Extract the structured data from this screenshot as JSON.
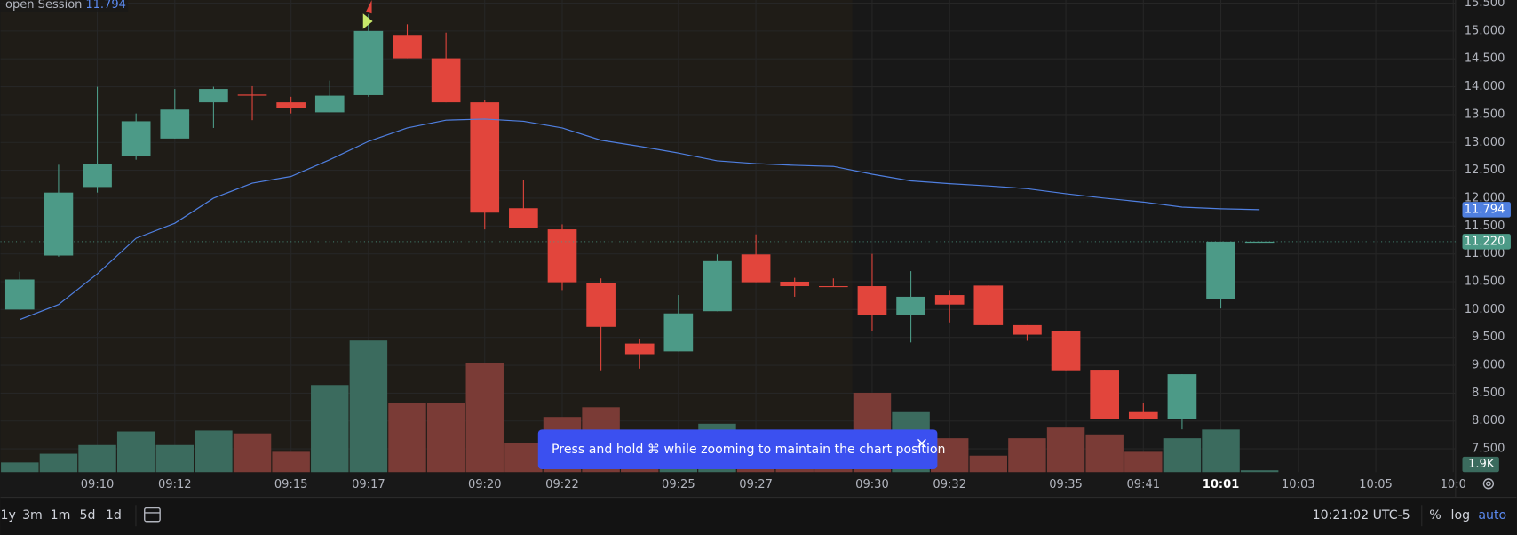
{
  "chart_data": {
    "type": "candlestick",
    "legend": {
      "name": "open Session",
      "value": 11.794,
      "value_label": "11.794"
    },
    "categories": [
      null,
      null,
      "09:10",
      null,
      "09:12",
      null,
      null,
      "09:15",
      null,
      "09:17",
      null,
      null,
      "09:20",
      null,
      "09:22",
      null,
      null,
      "09:25",
      null,
      "09:27",
      null,
      null,
      "09:30",
      null,
      "09:32",
      null,
      null,
      "09:35",
      null,
      "09:41",
      null,
      "10:01",
      null
    ],
    "x_extra_ticks": [
      "10:03",
      "10:05",
      "10:0"
    ],
    "up_color": "#4c9a87",
    "down_color": "#e2453c",
    "up_volume_color": "#3b6b5e",
    "down_volume_color": "#7a3b36",
    "open": [
      10.0,
      10.97,
      12.2,
      12.76,
      13.07,
      13.72,
      13.86,
      13.72,
      13.54,
      13.85,
      14.93,
      14.51,
      13.72,
      11.82,
      11.44,
      10.47,
      9.39,
      9.25,
      9.97,
      10.99,
      10.5,
      10.42,
      10.42,
      9.91,
      10.26,
      10.43,
      9.72,
      9.62,
      8.92,
      8.16,
      8.04,
      10.19,
      11.2
    ],
    "high": [
      10.68,
      12.6,
      14.0,
      13.52,
      13.96,
      14.0,
      14.01,
      13.82,
      14.11,
      15.3,
      15.12,
      14.97,
      13.77,
      12.33,
      11.53,
      10.56,
      9.48,
      10.26,
      10.99,
      11.35,
      10.57,
      10.56,
      11.0,
      10.69,
      10.35,
      10.43,
      9.72,
      9.62,
      8.92,
      8.32,
      8.84,
      11.22,
      11.22
    ],
    "low": [
      10.0,
      10.95,
      12.1,
      12.69,
      13.07,
      13.26,
      13.4,
      13.52,
      13.54,
      13.82,
      14.51,
      13.72,
      11.44,
      11.46,
      10.35,
      8.91,
      8.94,
      9.25,
      9.97,
      10.49,
      10.23,
      10.41,
      9.62,
      9.41,
      9.77,
      9.72,
      9.44,
      8.91,
      8.04,
      8.04,
      7.85,
      10.02,
      11.2
    ],
    "close": [
      10.54,
      12.1,
      12.62,
      13.38,
      13.59,
      13.96,
      13.84,
      13.61,
      13.84,
      15.0,
      14.51,
      13.72,
      11.74,
      11.46,
      10.49,
      9.69,
      9.2,
      9.93,
      10.87,
      10.49,
      10.42,
      10.41,
      9.9,
      10.23,
      10.09,
      9.72,
      9.55,
      8.91,
      8.04,
      8.04,
      8.84,
      11.22,
      11.22
    ],
    "volume": [
      10,
      19,
      28,
      42,
      28,
      43,
      40,
      21,
      90,
      136,
      71,
      71,
      113,
      30,
      57,
      67,
      18,
      18,
      50,
      28,
      18,
      18,
      82,
      62,
      35,
      17,
      35,
      46,
      39,
      21,
      35,
      44,
      1.9
    ],
    "volume_last_label": "1.9K",
    "volume_ylim": [
      0,
      488
    ],
    "ma": {
      "color": "#4f7fe0",
      "values": [
        9.82,
        10.09,
        10.64,
        11.28,
        11.55,
        12.0,
        12.27,
        12.39,
        12.69,
        13.02,
        13.26,
        13.4,
        13.42,
        13.38,
        13.26,
        13.04,
        12.93,
        12.81,
        12.67,
        12.62,
        12.59,
        12.57,
        12.43,
        12.31,
        12.26,
        12.22,
        12.17,
        12.08,
        12.0,
        11.93,
        11.84,
        11.81,
        11.794
      ]
    },
    "ma_last": {
      "value": 11.794,
      "label": "11.794"
    },
    "last_price": {
      "value": 11.22,
      "label": "11.220"
    },
    "ylim": [
      7.083,
      15.556
    ],
    "yticks": [
      {
        "value": 7.5,
        "label": "7.500"
      },
      {
        "value": 8,
        "label": "8.000"
      },
      {
        "value": 8.5,
        "label": "8.500"
      },
      {
        "value": 9,
        "label": "9.000"
      },
      {
        "value": 9.5,
        "label": "9.500"
      },
      {
        "value": 10,
        "label": "10.000"
      },
      {
        "value": 10.5,
        "label": "10.500"
      },
      {
        "value": 11,
        "label": "11.000"
      },
      {
        "value": 11.5,
        "label": "11.500"
      },
      {
        "value": 12,
        "label": "12.000"
      },
      {
        "value": 12.5,
        "label": "12.500"
      },
      {
        "value": 13,
        "label": "13.000"
      },
      {
        "value": 13.5,
        "label": "13.500"
      },
      {
        "value": 14,
        "label": "14.000"
      },
      {
        "value": 14.5,
        "label": "14.500"
      },
      {
        "value": 15,
        "label": "15.000"
      },
      {
        "value": 15.5,
        "label": "15.500"
      }
    ],
    "grid": true
  },
  "toast": {
    "text": "Press and hold ⌘ while zooming to maintain the chart position",
    "close": "×"
  },
  "toolbar": {
    "ranges": [
      "1y",
      "3m",
      "1m",
      "5d",
      "1d"
    ],
    "clock": "10:21:02 UTC-5",
    "percent": "%",
    "log": "log",
    "auto": "auto"
  }
}
